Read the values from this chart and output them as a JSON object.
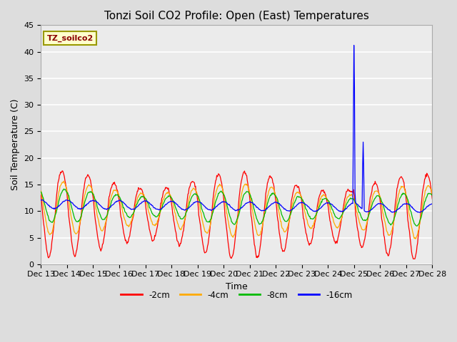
{
  "title": "Tonzi Soil CO2 Profile: Open (East) Temperatures",
  "ylabel": "Soil Temperature (C)",
  "xlabel": "Time",
  "legend_label": "TZ_soilco2",
  "series_labels": [
    "-2cm",
    "-4cm",
    "-8cm",
    "-16cm"
  ],
  "series_colors": [
    "#ff0000",
    "#ffaa00",
    "#00bb00",
    "#0000ff"
  ],
  "ylim": [
    0,
    45
  ],
  "yticks": [
    0,
    5,
    10,
    15,
    20,
    25,
    30,
    35,
    40,
    45
  ],
  "xtick_labels": [
    "Dec 13",
    "Dec 14",
    "Dec 15",
    "Dec 16",
    "Dec 17",
    "Dec 18",
    "Dec 19",
    "Dec 20",
    "Dec 21",
    "Dec 22",
    "Dec 23",
    "Dec 24",
    "Dec 25",
    "Dec 26",
    "Dec 27",
    "Dec 28"
  ],
  "background_color": "#dddddd",
  "plot_bg_color": "#ebebeb",
  "grid_color": "#ffffff",
  "title_fontsize": 11,
  "axis_fontsize": 9,
  "tick_fontsize": 8,
  "n_days": 15,
  "n_points_per_day": 48,
  "spike_day": 12,
  "spike_peak": 41.8,
  "spike2_day": 12.35,
  "spike2_peak": 23.0
}
